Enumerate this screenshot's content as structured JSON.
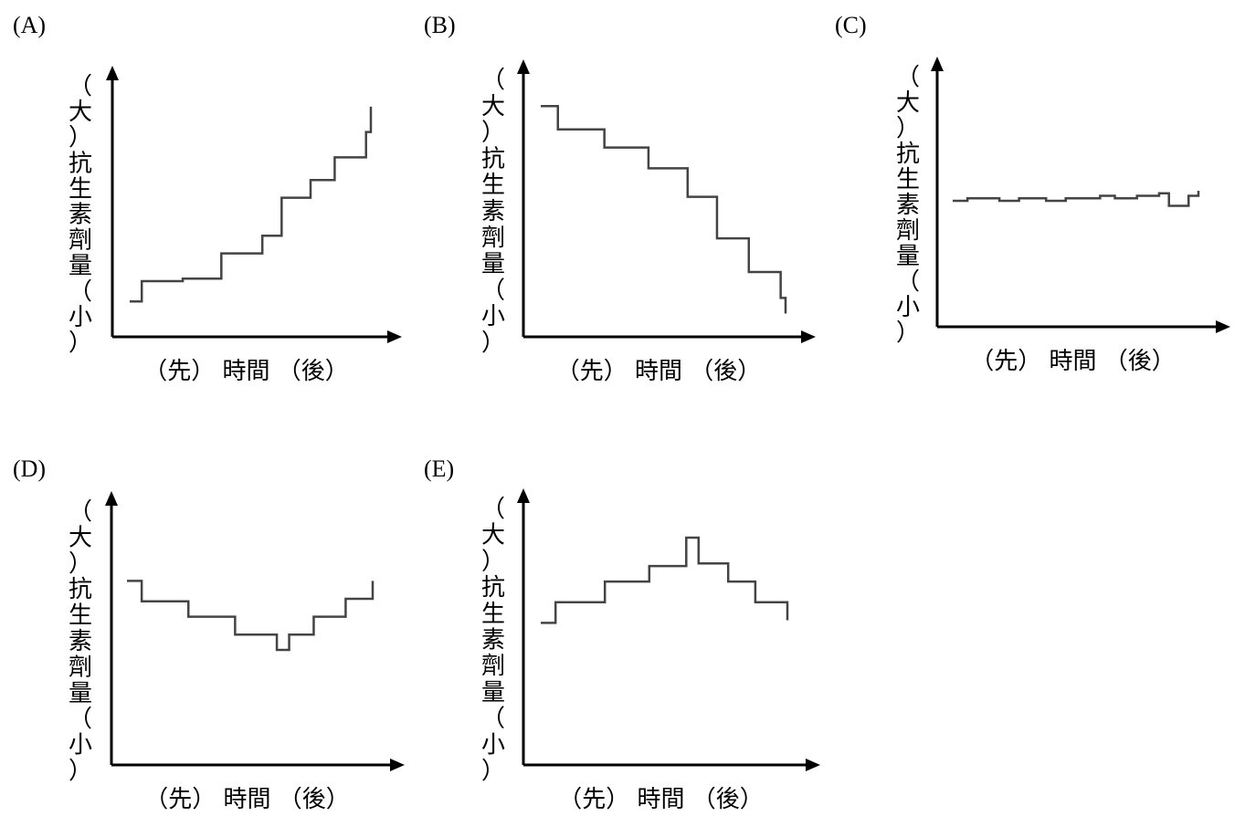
{
  "chart_data": [
    {
      "type": "line",
      "panel_label": "(A)",
      "ylabel": [
        "（",
        "大",
        "）",
        "抗",
        "生",
        "素",
        "劑",
        "量",
        "（",
        "小",
        "）"
      ],
      "xlabel": "（先） 時間 （後）",
      "x": [
        0,
        0.05,
        0.22,
        0.38,
        0.55,
        0.63,
        0.75,
        0.85,
        0.98,
        1.0
      ],
      "y": [
        0.14,
        0.22,
        0.23,
        0.33,
        0.4,
        0.55,
        0.62,
        0.71,
        0.81,
        0.91
      ],
      "ylim": [
        0,
        1
      ],
      "grid": false
    },
    {
      "type": "line",
      "panel_label": "(B)",
      "ylabel": [
        "（",
        "大",
        "）",
        "抗",
        "生",
        "素",
        "劑",
        "量",
        "（",
        "小",
        "）"
      ],
      "xlabel": "（先） 時間 （後）",
      "x": [
        0,
        0.07,
        0.26,
        0.44,
        0.6,
        0.72,
        0.85,
        0.98,
        1.0
      ],
      "y": [
        0.89,
        0.8,
        0.73,
        0.65,
        0.54,
        0.38,
        0.25,
        0.15,
        0.09
      ],
      "ylim": [
        0,
        1
      ],
      "grid": false
    },
    {
      "type": "line",
      "panel_label": "(C)",
      "ylabel": [
        "（",
        "大",
        "）",
        "抗",
        "生",
        "素",
        "劑",
        "量",
        "（",
        "小",
        "）"
      ],
      "xlabel": "（先） 時間 （後）",
      "x": [
        0,
        0.06,
        0.19,
        0.27,
        0.38,
        0.46,
        0.6,
        0.66,
        0.75,
        0.84,
        0.88,
        0.96,
        1.0
      ],
      "y": [
        0.5,
        0.51,
        0.5,
        0.51,
        0.5,
        0.51,
        0.52,
        0.51,
        0.52,
        0.53,
        0.48,
        0.52,
        0.54
      ],
      "ylim": [
        0,
        1
      ],
      "grid": false
    },
    {
      "type": "line",
      "panel_label": "(D)",
      "ylabel": [
        "（",
        "大",
        "）",
        "抗",
        "生",
        "素",
        "劑",
        "量",
        "（",
        "小",
        "）"
      ],
      "xlabel": "（先） 時間 （後）",
      "x": [
        0,
        0.06,
        0.25,
        0.44,
        0.61,
        0.66,
        0.76,
        0.89,
        1.0
      ],
      "y": [
        0.72,
        0.64,
        0.58,
        0.51,
        0.45,
        0.51,
        0.58,
        0.65,
        0.72
      ],
      "ylim": [
        0,
        1
      ],
      "grid": false
    },
    {
      "type": "line",
      "panel_label": "(E)",
      "ylabel": [
        "（",
        "大",
        "）",
        "抗",
        "生",
        "素",
        "劑",
        "量",
        "（",
        "小",
        "）"
      ],
      "xlabel": "（先） 時間 （後）",
      "x": [
        0,
        0.06,
        0.26,
        0.44,
        0.59,
        0.64,
        0.76,
        0.87,
        1.0
      ],
      "y": [
        0.55,
        0.63,
        0.71,
        0.77,
        0.88,
        0.78,
        0.71,
        0.63,
        0.56
      ],
      "ylim": [
        0,
        1
      ],
      "grid": false
    }
  ]
}
